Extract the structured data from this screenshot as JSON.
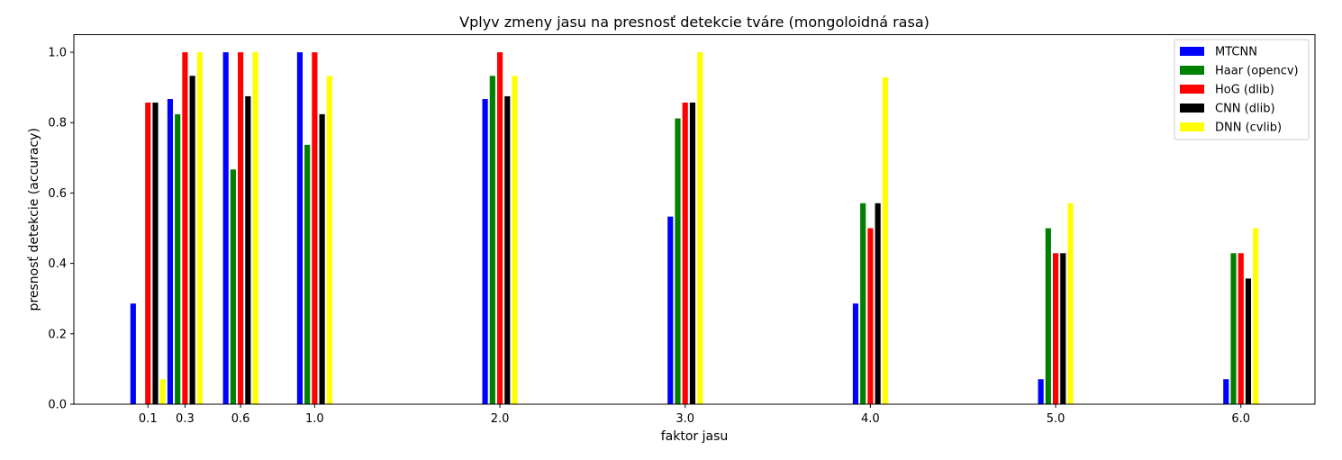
{
  "chart_data": {
    "type": "bar",
    "title": "Vplyv zmeny jasu na presnosť detekcie tváre (mongoloidná rasa)",
    "xlabel": "faktor jasu",
    "ylabel": "presnosť detekcie (accuracy)",
    "x": [
      0.1,
      0.3,
      0.6,
      1.0,
      2.0,
      3.0,
      4.0,
      5.0,
      6.0
    ],
    "x_tick_labels": [
      "0.1",
      "0.3",
      "0.6",
      "1.0",
      "2.0",
      "3.0",
      "4.0",
      "5.0",
      "6.0"
    ],
    "xlim": [
      -0.3,
      6.4
    ],
    "ylim": [
      0,
      1.05
    ],
    "y_ticks": [
      0.0,
      0.2,
      0.4,
      0.6,
      0.8,
      1.0
    ],
    "y_tick_labels": [
      "0.0",
      "0.2",
      "0.4",
      "0.6",
      "0.8",
      "1.0"
    ],
    "grid": false,
    "legend_position": "top-right",
    "series": [
      {
        "name": "MTCNN",
        "color": "#0000ff",
        "values": [
          0.286,
          0.867,
          1.0,
          1.0,
          0.867,
          0.533,
          0.286,
          0.071,
          0.071
        ]
      },
      {
        "name": "Haar (opencv)",
        "color": "#008000",
        "values": [
          0.0,
          0.824,
          0.667,
          0.737,
          0.933,
          0.812,
          0.571,
          0.5,
          0.429
        ]
      },
      {
        "name": "HoG (dlib)",
        "color": "#ff0000",
        "values": [
          0.857,
          1.0,
          1.0,
          1.0,
          1.0,
          0.857,
          0.5,
          0.429,
          0.429
        ]
      },
      {
        "name": "CNN (dlib)",
        "color": "#000000",
        "values": [
          0.857,
          0.933,
          0.875,
          0.824,
          0.875,
          0.857,
          0.571,
          0.429,
          0.357
        ]
      },
      {
        "name": "DNN (cvlib)",
        "color": "#ffff00",
        "values": [
          0.071,
          1.0,
          1.0,
          0.933,
          0.933,
          1.0,
          0.929,
          0.571,
          0.5
        ]
      }
    ]
  }
}
